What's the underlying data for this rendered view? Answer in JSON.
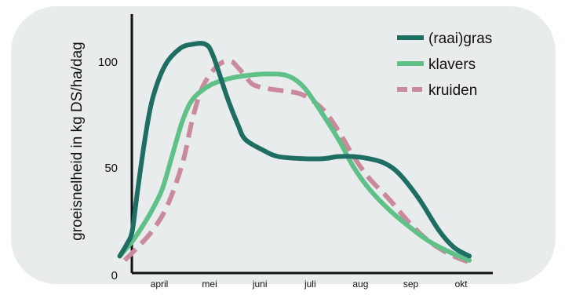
{
  "chart_data": {
    "type": "line",
    "ylabel": "groeisnelheid in kg DS/ha/dag",
    "xlabel": "",
    "y_ticks": [
      0,
      50,
      100
    ],
    "ylim": [
      0,
      122
    ],
    "x_ticks": [
      "april",
      "mei",
      "juni",
      "juli",
      "aug",
      "sep",
      "okt"
    ],
    "x_tick_pos": [
      1,
      2,
      3,
      4,
      5,
      6,
      7
    ],
    "xlim": [
      0.6,
      7.65
    ],
    "legend_position": "top-right",
    "series": [
      {
        "name": "(raai)gras",
        "color": "#1e6e63",
        "dashed": false,
        "x": [
          0.65,
          0.8,
          0.9,
          1.0,
          1.15,
          1.3,
          1.55,
          1.85,
          2.1,
          2.35,
          2.5,
          2.8,
          3.0,
          3.15,
          3.5,
          3.8,
          4.3,
          4.7,
          5.0,
          5.3,
          5.6,
          5.9,
          6.2,
          6.6,
          7.0,
          7.3,
          7.6
        ],
        "y": [
          8,
          14,
          20,
          38,
          63,
          82,
          98,
          106,
          108,
          108,
          103,
          82,
          70,
          63,
          58,
          55,
          54,
          54,
          55,
          55,
          54,
          52,
          47,
          35,
          20,
          12,
          8
        ]
      },
      {
        "name": "klavers",
        "color": "#5fc188",
        "dashed": false,
        "x": [
          0.65,
          0.9,
          1.1,
          1.3,
          1.5,
          1.7,
          1.9,
          2.1,
          2.4,
          2.7,
          3.1,
          3.6,
          4.0,
          4.3,
          4.6,
          5.0,
          5.3,
          5.6,
          6.0,
          6.4,
          6.8,
          7.2,
          7.6
        ],
        "y": [
          8,
          15,
          22,
          30,
          40,
          56,
          72,
          82,
          88,
          91,
          93,
          94,
          93,
          88,
          78,
          63,
          50,
          40,
          30,
          22,
          15,
          10,
          6
        ]
      },
      {
        "name": "kruiden",
        "color": "#c98a9c",
        "dashed": true,
        "x": [
          0.75,
          1.0,
          1.3,
          1.6,
          1.9,
          2.1,
          2.3,
          2.6,
          2.85,
          3.0,
          3.15,
          3.3,
          3.6,
          3.9,
          4.3,
          4.7,
          5.0,
          5.3,
          5.6,
          6.0,
          6.4,
          6.8,
          7.2,
          7.6
        ],
        "y": [
          6,
          12,
          20,
          32,
          52,
          73,
          88,
          98,
          100,
          97,
          93,
          89,
          87,
          86,
          84,
          77,
          67,
          55,
          45,
          35,
          24,
          15,
          9,
          5
        ]
      }
    ]
  }
}
